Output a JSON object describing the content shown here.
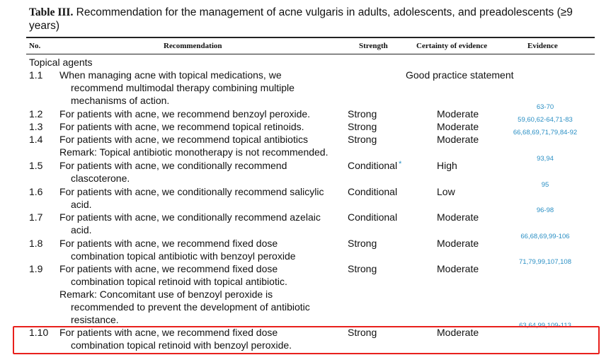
{
  "title": {
    "label": "Table III.",
    "text": "Recommendation for the management of acne vulgaris in adults, adolescents, and preadolescents (≥9 years)"
  },
  "headers": {
    "no": "No.",
    "rec": "Recommendation",
    "strength": "Strength",
    "certainty": "Certainty of evidence",
    "evidence": "Evidence"
  },
  "section": "Topical agents",
  "rows": [
    {
      "no": "1.1",
      "lines": [
        "When managing acne with topical medications, we",
        "recommend multimodal therapy combining multiple",
        "mechanisms of action."
      ],
      "gps": "Good practice statement"
    },
    {
      "no": "1.2",
      "lines": [
        "For patients with acne, we recommend benzoyl peroxide."
      ],
      "strength": "Strong",
      "certainty": "Moderate",
      "evidence": "63-70"
    },
    {
      "no": "1.3",
      "lines": [
        "For patients with acne, we recommend topical retinoids."
      ],
      "strength": "Strong",
      "certainty": "Moderate",
      "evidence": "59,60,62-64,71-83"
    },
    {
      "no": "1.4",
      "lines": [
        "For patients with acne, we recommend topical antibiotics"
      ],
      "remark": [
        "Remark: Topical antibiotic monotherapy is not recommended."
      ],
      "strength": "Strong",
      "certainty": "Moderate",
      "evidence": "66,68,69,71,79,84-92"
    },
    {
      "no": "1.5",
      "lines": [
        "For patients with acne, we conditionally recommend",
        "clascoterone."
      ],
      "strength": "Conditional",
      "strength_mark": "*",
      "certainty": "High",
      "evidence": "93,94"
    },
    {
      "no": "1.6",
      "lines": [
        "For patients with acne, we conditionally recommend salicylic",
        "acid."
      ],
      "strength": "Conditional",
      "certainty": "Low",
      "evidence": "95"
    },
    {
      "no": "1.7",
      "lines": [
        "For patients with acne, we conditionally recommend azelaic",
        "acid."
      ],
      "strength": "Conditional",
      "certainty": "Moderate",
      "evidence": "96-98"
    },
    {
      "no": "1.8",
      "lines": [
        "For patients with acne, we recommend fixed dose",
        "combination topical antibiotic with benzoyl peroxide"
      ],
      "strength": "Strong",
      "certainty": "Moderate",
      "evidence": "66,68,69,99-106"
    },
    {
      "no": "1.9",
      "lines": [
        "For patients with acne, we recommend fixed dose",
        "combination topical retinoid with topical antibiotic."
      ],
      "remark": [
        "Remark: Concomitant use of benzoyl peroxide is",
        "recommended to prevent the development of antibiotic",
        "resistance."
      ],
      "strength": "Strong",
      "certainty": "Moderate",
      "evidence": "71,79,99,107,108"
    },
    {
      "no": "1.10",
      "lines": [
        "For patients with acne, we recommend fixed dose",
        "combination topical retinoid with benzoyl peroxide."
      ],
      "strength": "Strong",
      "certainty": "Moderate",
      "evidence": "63,64,99,109-113"
    }
  ],
  "highlight_color": "#e8201c"
}
